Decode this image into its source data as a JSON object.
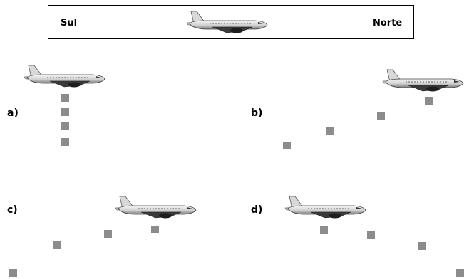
{
  "header": {
    "left_label": "Sul",
    "right_label": "Norte"
  },
  "options": [
    {
      "label": "a)"
    },
    {
      "label": "b)"
    },
    {
      "label": "c)"
    },
    {
      "label": "d)"
    }
  ],
  "colors": {
    "square": "#8c8c8c",
    "border": "#000000"
  },
  "icons": {
    "plane": "airplane-icon",
    "square": "dropped-package-icon"
  }
}
